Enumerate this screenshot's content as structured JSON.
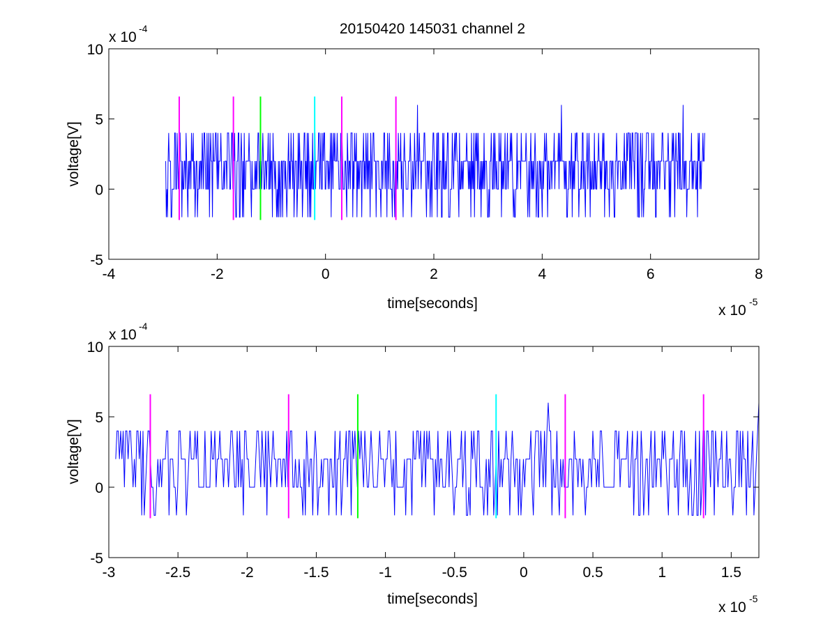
{
  "figure": {
    "title": "20150420 145031 channel 2"
  },
  "chart_data": [
    {
      "type": "line",
      "xlabel": "time[seconds]",
      "ylabel": "voltage[V]",
      "xlim": [
        -4e-05,
        8e-05
      ],
      "ylim": [
        -0.0005,
        0.001
      ],
      "x_ticks": [
        -4,
        -2,
        0,
        2,
        4,
        6,
        8
      ],
      "y_ticks": [
        -5,
        0,
        5,
        10
      ],
      "x_exponent_label": "x 10",
      "x_exponent": "-5",
      "y_exponent_label": "x 10",
      "y_exponent": "-4",
      "signal": {
        "color": "#0000ff",
        "x_range": [
          -2.95e-05,
          7e-05
        ],
        "levels": [
          -0.0002,
          0,
          0.0002,
          0.0004,
          0.0006
        ],
        "peaks": [
          {
            "x": 1.7e-05,
            "y": 0.0006
          },
          {
            "x": 4.35e-05,
            "y": 0.0006
          },
          {
            "x": 6.6e-05,
            "y": 0.0006
          }
        ]
      },
      "markers": [
        {
          "x": -2.7e-05,
          "color": "#ff00ff",
          "ymin": -0.00022,
          "ymax": 0.00066
        },
        {
          "x": -1.7e-05,
          "color": "#ff00ff",
          "ymin": -0.00022,
          "ymax": 0.00066
        },
        {
          "x": -1.2e-05,
          "color": "#00ff00",
          "ymin": -0.00022,
          "ymax": 0.00066
        },
        {
          "x": -2e-06,
          "color": "#00ffff",
          "ymin": -0.00022,
          "ymax": 0.00066
        },
        {
          "x": 3e-06,
          "color": "#ff00ff",
          "ymin": -0.00022,
          "ymax": 0.00066
        },
        {
          "x": 1.3e-05,
          "color": "#ff00ff",
          "ymin": -0.00022,
          "ymax": 0.00066
        }
      ]
    },
    {
      "type": "line",
      "xlabel": "time[seconds]",
      "ylabel": "voltage[V]",
      "xlim": [
        -3e-05,
        1.7e-05
      ],
      "ylim": [
        -0.0005,
        0.001
      ],
      "x_ticks": [
        "-3",
        "-2.5",
        "-2",
        "-1.5",
        "-1",
        "-0.5",
        "0",
        "0.5",
        "1",
        "1.5"
      ],
      "x_tick_values": [
        -3,
        -2.5,
        -2,
        -1.5,
        -1,
        -0.5,
        0,
        0.5,
        1,
        1.5
      ],
      "y_ticks": [
        -5,
        0,
        5,
        10
      ],
      "x_exponent_label": "x 10",
      "x_exponent": "-5",
      "y_exponent_label": "x 10",
      "y_exponent": "-4",
      "signal": {
        "color": "#0000ff",
        "x_range": [
          -2.95e-05,
          1.7e-05
        ],
        "levels": [
          -0.0002,
          0,
          0.0002,
          0.0004,
          0.0006
        ],
        "peaks": [
          {
            "x": 1.8e-06,
            "y": 0.0006
          },
          {
            "x": 1.7e-05,
            "y": 0.0006
          }
        ]
      },
      "markers": [
        {
          "x": -2.7e-05,
          "color": "#ff00ff",
          "ymin": -0.00022,
          "ymax": 0.00066
        },
        {
          "x": -1.7e-05,
          "color": "#ff00ff",
          "ymin": -0.00022,
          "ymax": 0.00066
        },
        {
          "x": -1.2e-05,
          "color": "#00ff00",
          "ymin": -0.00022,
          "ymax": 0.00066
        },
        {
          "x": -2e-06,
          "color": "#00ffff",
          "ymin": -0.00022,
          "ymax": 0.00066
        },
        {
          "x": 3e-06,
          "color": "#ff00ff",
          "ymin": -0.00022,
          "ymax": 0.00066
        },
        {
          "x": 1.3e-05,
          "color": "#ff00ff",
          "ymin": -0.00022,
          "ymax": 0.00066
        }
      ]
    }
  ]
}
